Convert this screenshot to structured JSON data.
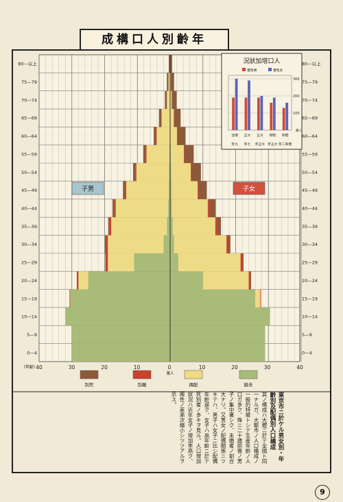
{
  "title": "成構口人別齡年",
  "page_number": "9",
  "chart_data": {
    "type": "bar",
    "subtype": "population-pyramid",
    "age_groups": [
      "0—4",
      "5—9",
      "10—14",
      "15—19",
      "20—24",
      "25—29",
      "30—34",
      "35—39",
      "40—44",
      "45—49",
      "50—54",
      "55—59",
      "60—64",
      "65—69",
      "70—74",
      "75—79",
      "80—以上"
    ],
    "x_axis_ticks": [
      "40",
      "30",
      "20",
      "10",
      "0",
      "10",
      "20",
      "30",
      "40"
    ],
    "x_unit_label": "萬人",
    "y_unit_label": "（年齡）",
    "legend": [
      {
        "label": "別死",
        "color": "#8b5a3a"
      },
      {
        "label": "別離",
        "color": "#c8412c"
      },
      {
        "label": "偶配",
        "color": "#eedb86"
      },
      {
        "label": "婚未",
        "color": "#a8bb78"
      }
    ],
    "side_labels": {
      "male": "子男",
      "female": "子女"
    },
    "male": {
      "single": [
        30,
        30,
        32,
        30.5,
        25,
        11,
        2,
        1,
        0.6,
        0.4,
        0.3,
        0.2,
        0.1,
        0.1,
        0,
        0,
        0
      ],
      "married": [
        0,
        0,
        0,
        0,
        3,
        8,
        17,
        17,
        16,
        13,
        10,
        7,
        4,
        2.5,
        1,
        0.5,
        0
      ],
      "divorced": [
        0,
        0,
        0,
        0.2,
        0.5,
        0.7,
        0.6,
        0.5,
        0.4,
        0.3,
        0.2,
        0.2,
        0.1,
        0.1,
        0,
        0,
        0
      ],
      "widowed": [
        0,
        0,
        0,
        0,
        0,
        0.1,
        0.3,
        0.4,
        0.6,
        0.7,
        0.8,
        0.8,
        0.8,
        0.7,
        0.6,
        0.5,
        0.4
      ]
    },
    "female": {
      "single": [
        29,
        29,
        30.5,
        26,
        10,
        2.5,
        1.2,
        0.8,
        0.5,
        0.4,
        0.3,
        0.2,
        0.1,
        0.1,
        0,
        0,
        0
      ],
      "married": [
        0,
        0,
        0,
        1.5,
        14,
        19,
        16,
        13,
        11,
        8,
        6,
        4,
        2,
        1,
        0.5,
        0.2,
        0
      ],
      "divorced": [
        0,
        0,
        0,
        0.2,
        0.6,
        0.7,
        0.6,
        0.5,
        0.4,
        0.3,
        0.3,
        0.2,
        0.1,
        0.1,
        0,
        0,
        0
      ],
      "widowed": [
        0,
        0,
        0,
        0,
        0.1,
        0.2,
        0.6,
        1.2,
        2,
        2.5,
        2.8,
        2.8,
        2.5,
        2,
        1.5,
        1,
        0.6
      ]
    },
    "inset": {
      "type": "bar",
      "title": "況狀加增口人",
      "legend": [
        {
          "label": "者性男",
          "color": "#d04a3a"
        },
        {
          "label": "者性女",
          "color": "#5866b8"
        }
      ],
      "categories": [
        "年九",
        "年七",
        "年正大",
        "年五大",
        "年二和昭"
      ],
      "category_marks": [
        "治明",
        "正大",
        "正大",
        "和昭",
        "和昭"
      ],
      "unit_label": "萬人",
      "y_ticks": [
        "100",
        "200",
        "300"
      ],
      "ylim": [
        0,
        320
      ],
      "series": [
        {
          "name": "者性男",
          "values": [
            190,
            190,
            190,
            160,
            130
          ]
        },
        {
          "name": "者性女",
          "values": [
            300,
            290,
            200,
            190,
            160
          ]
        }
      ]
    }
  },
  "notes": {
    "heading": "東京市ニ於ケル男女別・年齡別及配偶別人口構成",
    "body": "其ノ構成ハ大體ニ於テ全國ト同一ナルガ、大都市ノ人口構成ノ一般的特徵トシテ生産年齡ノ人口ガ多ク、殊ニ二十歳前後ノ男子ノ集中著シク、未婚者ノ割合大ナリ。又男女ノ配偶關係ニツキテハ、男子ハ女子ニ比シ配偶年齡遅ク、女子ハ高年齡ニ於テ死別者ノ多キヲ見ル。人口增加狀況ハ近年女子ノ增加率高ク、兩性ノ差漸次縮小シツツアルヲ示ス。"
  }
}
